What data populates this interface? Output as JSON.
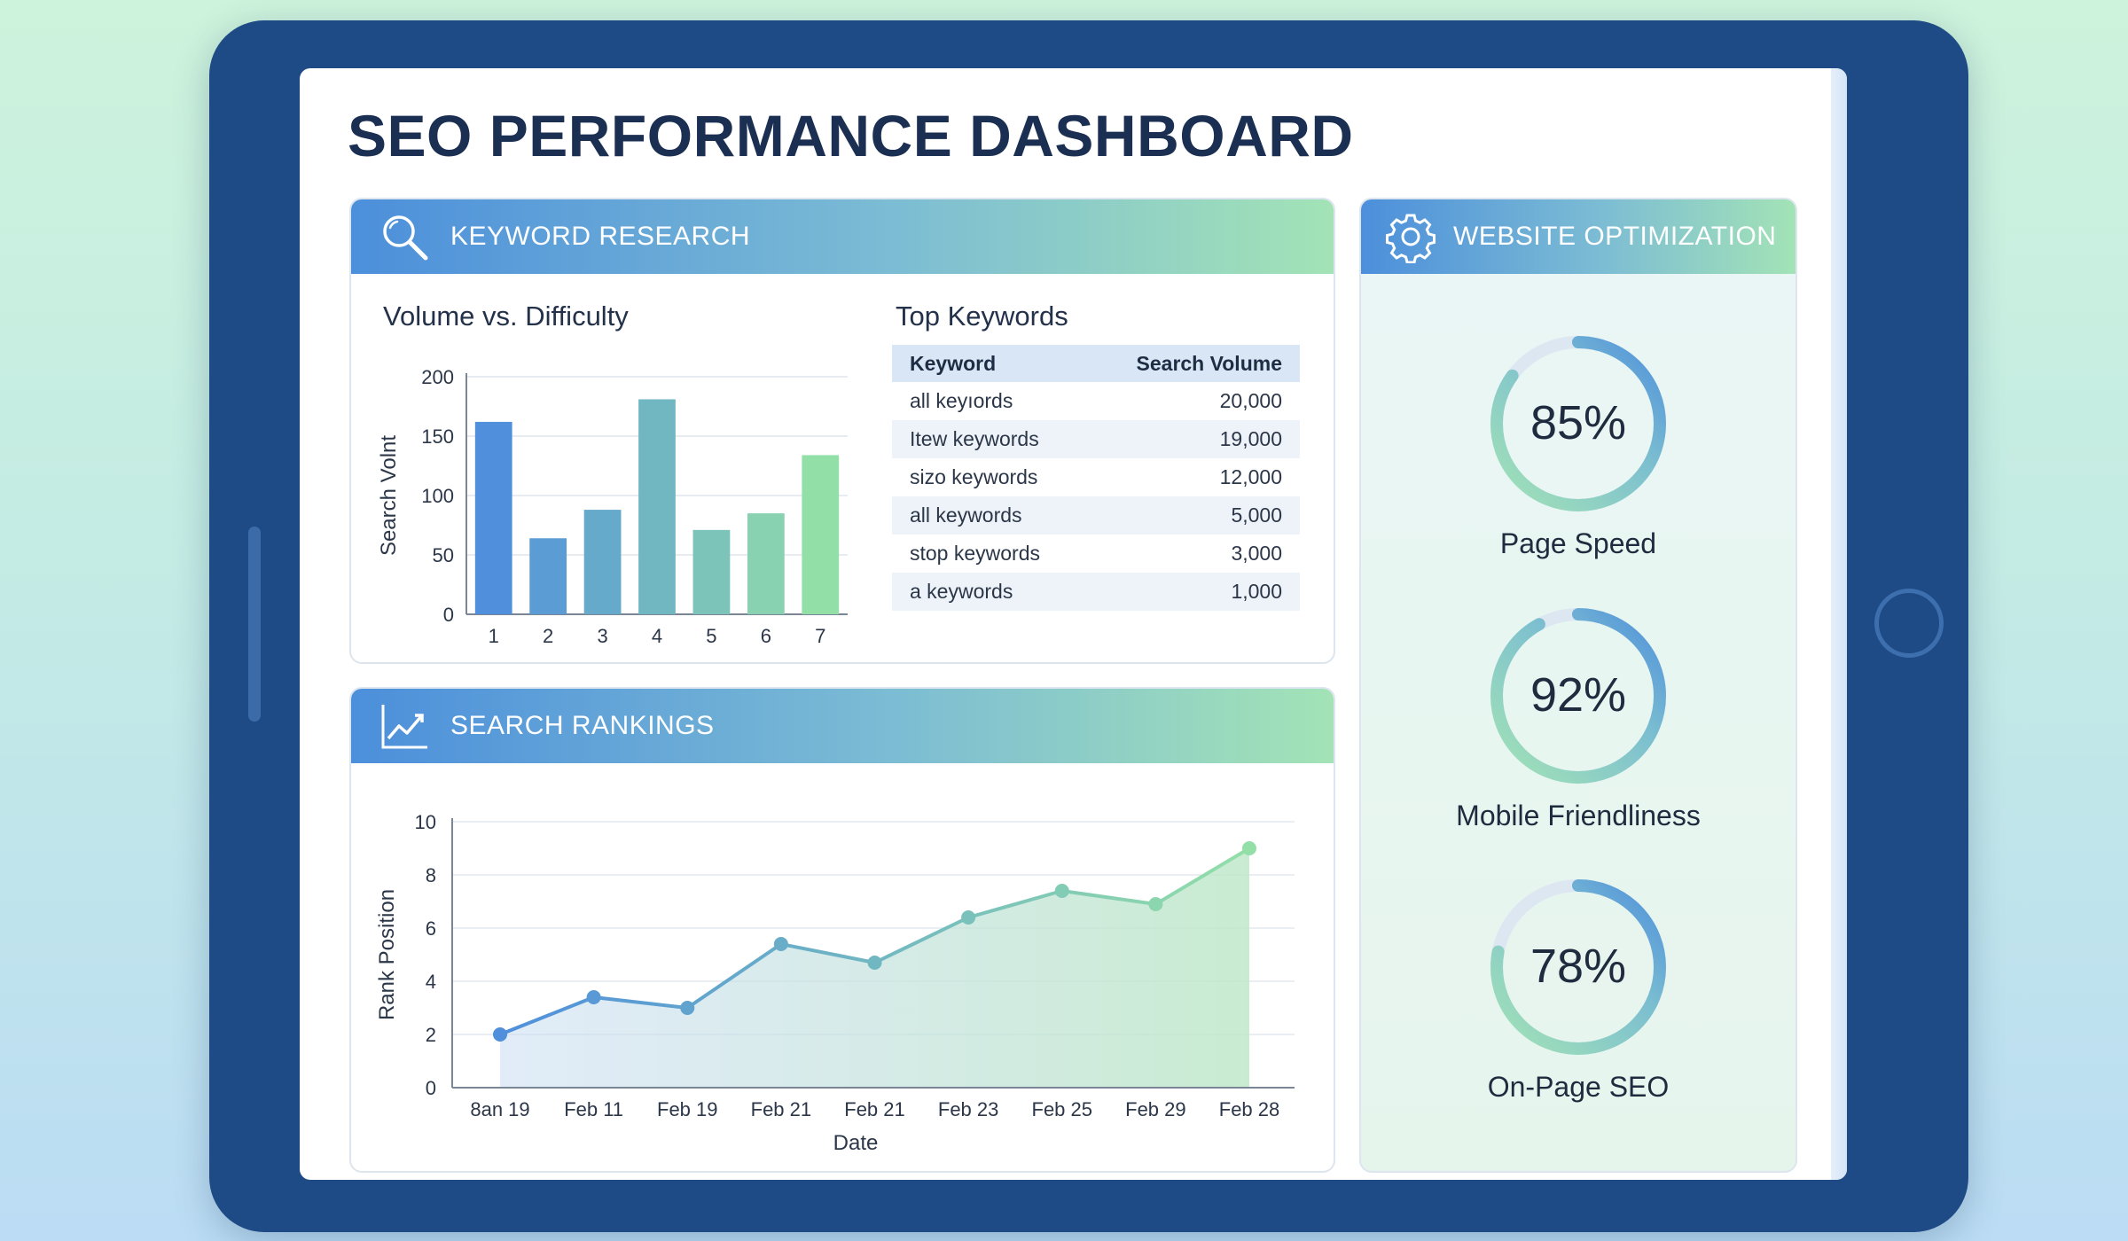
{
  "dashboard": {
    "title": "SEO PERFORMANCE DASHBOARD"
  },
  "keyword_panel": {
    "header": "KEYWORD RESEARCH",
    "icon": "magnifier-icon",
    "chart_title": "Volume vs. Difficulty",
    "table_title": "Top Keywords",
    "table": {
      "columns": [
        "Keyword",
        "Search Volume"
      ],
      "rows": [
        {
          "keyword": "all keyıords",
          "volume": "20,000"
        },
        {
          "keyword": " Itew keywords",
          "volume": "19,000"
        },
        {
          "keyword": "sizo keywords",
          "volume": "12,000"
        },
        {
          "keyword": "all keywords",
          "volume": "5,000"
        },
        {
          "keyword": "stop keywords",
          "volume": "3,000"
        },
        {
          "keyword": "a keywords",
          "volume": "1,000"
        }
      ]
    }
  },
  "rank_panel": {
    "header": "SEARCH RANKINGS",
    "icon": "trend-chart-icon"
  },
  "optimization_panel": {
    "header": "WEBSITE OPTIMIZATION",
    "icon": "gear-icon",
    "gauges": [
      {
        "label": "Page Speed",
        "value": 85,
        "display": "85%"
      },
      {
        "label": "Mobile Friendliness",
        "value": 92,
        "display": "92%"
      },
      {
        "label": "On-Page SEO",
        "value": 78,
        "display": "78%"
      }
    ]
  },
  "colors": {
    "header_start": "#4c8fdb",
    "header_end": "#a3e3b6",
    "bar_blue": "#4f8fdc",
    "bar_green": "#93dfa8",
    "line": "#5b9bd5",
    "frame": "#1e4a86"
  },
  "chart_data": [
    {
      "type": "bar",
      "title": "Volume vs. Difficulty",
      "xlabel": "",
      "ylabel": "Search Volnt",
      "categories": [
        "1",
        "2",
        "3",
        "4",
        "5",
        "6",
        "7"
      ],
      "values": [
        162,
        64,
        88,
        181,
        71,
        85,
        134
      ],
      "ylim": [
        0,
        200
      ],
      "yticks": [
        0,
        50,
        100,
        150,
        200
      ],
      "grid": true,
      "legend": "none"
    },
    {
      "type": "area",
      "title": "",
      "xlabel": "Date",
      "ylabel": "Rank Position",
      "categories": [
        "8an 19",
        "Feb 11",
        "Feb 19",
        "Feb 21",
        "Feb 21",
        "Feb 23",
        "Feb 25",
        "Feb 29",
        "Feb 28"
      ],
      "values": [
        2.0,
        3.4,
        3.0,
        5.4,
        4.7,
        6.4,
        7.4,
        6.9,
        9.0
      ],
      "ylim": [
        0,
        10
      ],
      "yticks": [
        0,
        2,
        4,
        6,
        8,
        10
      ],
      "grid": true,
      "legend": "none"
    }
  ]
}
